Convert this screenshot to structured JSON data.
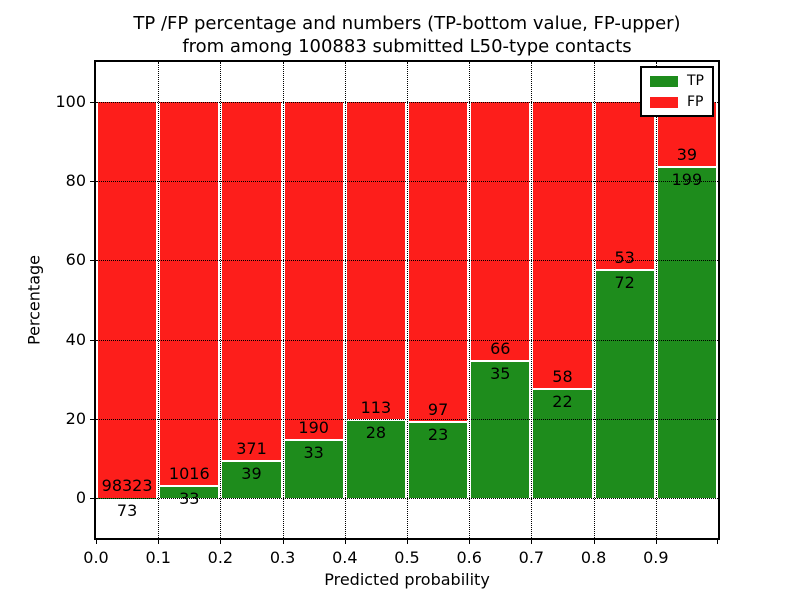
{
  "chart_data": {
    "type": "bar",
    "stacked": true,
    "normalized": "each bin scaled to 100%",
    "title_line1": "TP /FP percentage and numbers (TP-bottom value, FP-upper)",
    "title_line2": "from among 100883 submitted L50-type contacts",
    "xlabel": "Predicted probability",
    "ylabel": "Percentage",
    "categories": [
      "0.0",
      "0.1",
      "0.2",
      "0.3",
      "0.4",
      "0.5",
      "0.6",
      "0.7",
      "0.8",
      "0.9"
    ],
    "series": [
      {
        "name": "TP",
        "color": "#1e8c1c",
        "counts": [
          73,
          33,
          39,
          33,
          28,
          23,
          35,
          22,
          72,
          199
        ]
      },
      {
        "name": "FP",
        "color": "#fd1e1b",
        "counts": [
          98323,
          1016,
          371,
          190,
          113,
          97,
          66,
          58,
          53,
          39
        ]
      }
    ],
    "tp_percent": [
      0.07,
      3.15,
      9.51,
      14.8,
      19.86,
      19.17,
      34.65,
      27.5,
      57.6,
      83.61
    ],
    "x_ticks": [
      "0.0",
      "0.1",
      "0.2",
      "0.3",
      "0.4",
      "0.5",
      "0.6",
      "0.7",
      "0.8",
      "0.9"
    ],
    "y_ticks": [
      0,
      20,
      40,
      60,
      80,
      100
    ],
    "xlim": [
      0.0,
      1.0
    ],
    "ylim": [
      -10,
      110
    ],
    "grid": "dotted, drawn over bars",
    "legend_position": "upper right"
  }
}
